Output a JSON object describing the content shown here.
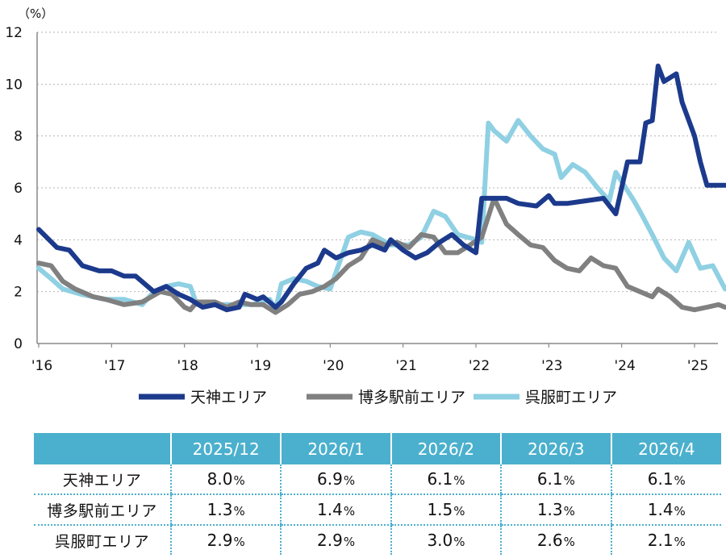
{
  "chart_data": {
    "type": "line",
    "y_unit": "（%）",
    "ylim": [
      0,
      12
    ],
    "y_ticks": [
      "0",
      "2",
      "4",
      "6",
      "8",
      "10",
      "12"
    ],
    "x_tick_labels": [
      "'16",
      "'17",
      "'18",
      "'19",
      "'20",
      "'21",
      "'22",
      "'23",
      "'24",
      "'25"
    ],
    "x_start_year": 2016,
    "grid": "horizontal-dotted",
    "legend_position": "bottom",
    "series": [
      {
        "name": "天神エリア",
        "color": "#1c3a8c",
        "x": [
          2016.0,
          2016.25,
          2016.42,
          2016.6,
          2016.83,
          2017.0,
          2017.17,
          2017.33,
          2017.58,
          2017.75,
          2017.92,
          2018.08,
          2018.25,
          2018.42,
          2018.58,
          2018.75,
          2018.83,
          2019.0,
          2019.08,
          2019.25,
          2019.33,
          2019.5,
          2019.67,
          2019.83,
          2019.92,
          2020.08,
          2020.25,
          2020.42,
          2020.58,
          2020.75,
          2020.83,
          2021.0,
          2021.17,
          2021.33,
          2021.5,
          2021.67,
          2021.83,
          2022.0,
          2022.08,
          2022.25,
          2022.42,
          2022.58,
          2022.83,
          2023.0,
          2023.08,
          2023.25,
          2023.5,
          2023.75,
          2023.92,
          2024.08,
          2024.25,
          2024.33,
          2024.42,
          2024.5,
          2024.58,
          2024.75,
          2024.83,
          2025.0,
          2025.08,
          2025.17,
          2025.42
        ],
        "y": [
          4.4,
          3.7,
          3.6,
          3.0,
          2.8,
          2.8,
          2.6,
          2.6,
          2.0,
          2.2,
          1.9,
          1.7,
          1.4,
          1.5,
          1.3,
          1.4,
          1.9,
          1.7,
          1.8,
          1.4,
          1.6,
          2.3,
          2.9,
          3.1,
          3.6,
          3.3,
          3.5,
          3.6,
          3.8,
          3.6,
          4.0,
          3.6,
          3.3,
          3.5,
          3.9,
          4.2,
          3.8,
          3.5,
          5.6,
          5.6,
          5.6,
          5.4,
          5.3,
          5.7,
          5.4,
          5.4,
          5.5,
          5.6,
          5.0,
          7.0,
          7.0,
          8.5,
          8.6,
          10.7,
          10.1,
          10.4,
          9.3,
          8.0,
          7.0,
          6.1,
          6.1
        ]
      },
      {
        "name": "博多駅前エリア",
        "color": "#808080",
        "x": [
          2016.0,
          2016.17,
          2016.33,
          2016.5,
          2016.75,
          2016.92,
          2017.17,
          2017.42,
          2017.67,
          2017.83,
          2018.0,
          2018.08,
          2018.17,
          2018.42,
          2018.58,
          2018.75,
          2018.92,
          2019.08,
          2019.25,
          2019.42,
          2019.58,
          2019.75,
          2019.92,
          2020.08,
          2020.25,
          2020.42,
          2020.58,
          2020.75,
          2020.92,
          2021.08,
          2021.25,
          2021.42,
          2021.58,
          2021.75,
          2021.92,
          2022.08,
          2022.25,
          2022.42,
          2022.58,
          2022.75,
          2022.92,
          2023.08,
          2023.25,
          2023.42,
          2023.58,
          2023.75,
          2023.92,
          2024.08,
          2024.25,
          2024.42,
          2024.5,
          2024.67,
          2024.83,
          2025.0,
          2025.17,
          2025.33,
          2025.42
        ],
        "y": [
          3.1,
          3.0,
          2.4,
          2.1,
          1.8,
          1.7,
          1.5,
          1.6,
          2.0,
          1.9,
          1.4,
          1.3,
          1.6,
          1.6,
          1.4,
          1.6,
          1.5,
          1.5,
          1.2,
          1.5,
          1.9,
          2.0,
          2.2,
          2.5,
          3.0,
          3.3,
          4.0,
          3.8,
          3.9,
          3.7,
          4.2,
          4.1,
          3.5,
          3.5,
          3.8,
          4.1,
          5.6,
          4.6,
          4.2,
          3.8,
          3.7,
          3.2,
          2.9,
          2.8,
          3.3,
          3.0,
          2.9,
          2.2,
          2.0,
          1.8,
          2.1,
          1.8,
          1.4,
          1.3,
          1.4,
          1.5,
          1.4
        ]
      },
      {
        "name": "呉服町エリア",
        "color": "#8fd0e3",
        "x": [
          2016.0,
          2016.17,
          2016.33,
          2016.58,
          2016.75,
          2016.92,
          2017.17,
          2017.42,
          2017.58,
          2017.75,
          2017.92,
          2018.08,
          2018.17,
          2018.33,
          2018.5,
          2018.75,
          2018.92,
          2019.08,
          2019.17,
          2019.25,
          2019.33,
          2019.5,
          2019.67,
          2019.83,
          2020.0,
          2020.25,
          2020.42,
          2020.58,
          2020.83,
          2021.08,
          2021.25,
          2021.42,
          2021.58,
          2021.75,
          2022.0,
          2022.08,
          2022.17,
          2022.25,
          2022.42,
          2022.58,
          2022.75,
          2022.92,
          2023.08,
          2023.17,
          2023.33,
          2023.5,
          2023.67,
          2023.83,
          2023.92,
          2024.17,
          2024.25,
          2024.42,
          2024.58,
          2024.75,
          2024.92,
          2025.08,
          2025.25,
          2025.42
        ],
        "y": [
          2.9,
          2.5,
          2.1,
          1.9,
          1.8,
          1.7,
          1.7,
          1.5,
          2.0,
          2.2,
          2.3,
          2.2,
          1.5,
          1.6,
          1.5,
          1.5,
          1.5,
          1.6,
          1.7,
          1.3,
          2.3,
          2.5,
          2.4,
          2.2,
          2.1,
          4.1,
          4.3,
          4.2,
          3.8,
          3.8,
          4.1,
          5.1,
          4.9,
          4.2,
          4.0,
          3.9,
          8.5,
          8.2,
          7.8,
          8.6,
          8.0,
          7.5,
          7.3,
          6.4,
          6.9,
          6.6,
          6.0,
          5.5,
          6.6,
          5.5,
          5.1,
          4.2,
          3.3,
          2.8,
          3.9,
          2.9,
          3.0,
          2.1
        ]
      }
    ]
  },
  "table": {
    "headers": [
      "",
      "2025/12",
      "2026/1",
      "2026/2",
      "2026/3",
      "2026/4"
    ],
    "unit": "%",
    "rows": [
      {
        "label": "天神エリア",
        "values": [
          "8.0",
          "6.9",
          "6.1",
          "6.1",
          "6.1"
        ]
      },
      {
        "label": "博多駅前エリア",
        "values": [
          "1.3",
          "1.4",
          "1.5",
          "1.3",
          "1.4"
        ]
      },
      {
        "label": "呉服町エリア",
        "values": [
          "2.9",
          "2.9",
          "3.0",
          "2.6",
          "2.1"
        ]
      }
    ]
  }
}
